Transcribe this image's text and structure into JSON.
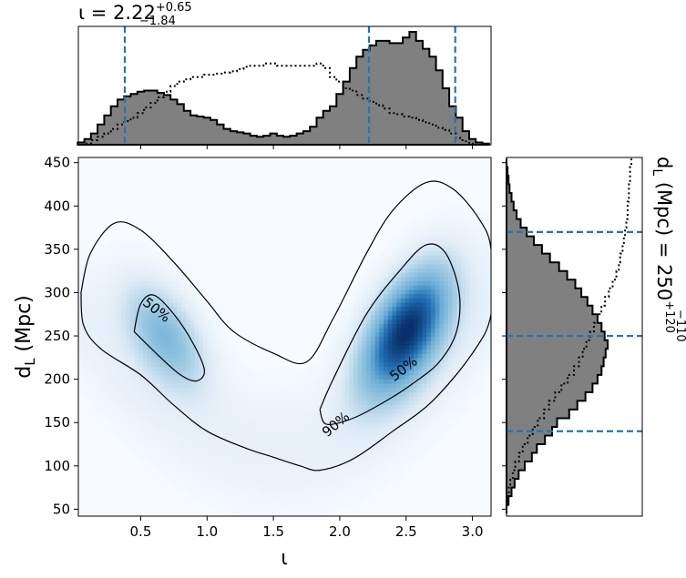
{
  "chart_data": {
    "type": "heatmap",
    "title": "",
    "xlabel": "ι",
    "ylabel": "d_L (Mpc)",
    "xlim": [
      0.03,
      3.14
    ],
    "ylim": [
      42,
      456
    ],
    "x_ticks": [
      "0.5",
      "1.0",
      "1.5",
      "2.0",
      "2.5",
      "3.0"
    ],
    "x_tick_values": [
      0.5,
      1.0,
      1.5,
      2.0,
      2.5,
      3.0
    ],
    "y_ticks": [
      "50",
      "100",
      "150",
      "200",
      "250",
      "300",
      "350",
      "400",
      "450"
    ],
    "y_tick_values": [
      50,
      100,
      150,
      200,
      250,
      300,
      350,
      400,
      450
    ],
    "colormap": "Blues",
    "density_modes": [
      {
        "x": 2.5,
        "y": 255,
        "sx": 0.22,
        "sy": 48,
        "rho": 0.55,
        "weight": 1.0
      },
      {
        "x": 0.68,
        "y": 250,
        "sx": 0.2,
        "sy": 40,
        "rho": -0.5,
        "weight": 0.4
      }
    ],
    "contours": [
      {
        "label": "90%",
        "paths": [
          [
            [
              0.05,
              300
            ],
            [
              0.12,
              345
            ],
            [
              0.3,
              380
            ],
            [
              0.5,
              372
            ],
            [
              0.75,
              335
            ],
            [
              1.0,
              290
            ],
            [
              1.2,
              255
            ],
            [
              1.5,
              230
            ],
            [
              1.75,
              220
            ],
            [
              1.95,
              270
            ],
            [
              2.2,
              345
            ],
            [
              2.4,
              395
            ],
            [
              2.65,
              427
            ],
            [
              2.85,
              420
            ],
            [
              3.05,
              385
            ],
            [
              3.14,
              350
            ],
            [
              3.14,
              275
            ],
            [
              3.0,
              230
            ],
            [
              2.7,
              175
            ],
            [
              2.4,
              140
            ],
            [
              2.1,
              108
            ],
            [
              1.85,
              95
            ],
            [
              1.7,
              100
            ],
            [
              1.5,
              110
            ],
            [
              1.3,
              120
            ],
            [
              1.0,
              140
            ],
            [
              0.75,
              170
            ],
            [
              0.5,
              205
            ],
            [
              0.2,
              235
            ],
            [
              0.07,
              262
            ],
            [
              0.05,
              300
            ]
          ]
        ]
      },
      {
        "label": "50%",
        "paths": [
          [
            [
              0.45,
              255
            ],
            [
              0.5,
              287
            ],
            [
              0.6,
              297
            ],
            [
              0.75,
              275
            ],
            [
              0.9,
              240
            ],
            [
              0.98,
              210
            ],
            [
              0.92,
              198
            ],
            [
              0.8,
              205
            ],
            [
              0.65,
              225
            ],
            [
              0.45,
              255
            ]
          ],
          [
            [
              1.85,
              165
            ],
            [
              1.95,
              200
            ],
            [
              2.2,
              275
            ],
            [
              2.45,
              325
            ],
            [
              2.65,
              355
            ],
            [
              2.8,
              345
            ],
            [
              2.9,
              300
            ],
            [
              2.88,
              255
            ],
            [
              2.75,
              220
            ],
            [
              2.55,
              195
            ],
            [
              2.35,
              175
            ],
            [
              2.1,
              155
            ],
            [
              1.9,
              148
            ],
            [
              1.85,
              165
            ]
          ]
        ]
      }
    ],
    "top_marginal": {
      "title": "ι = 2.22",
      "title_sup": "+0.65",
      "title_sub": "−1.84",
      "bins_x": [
        0.05,
        0.1,
        0.15,
        0.2,
        0.25,
        0.3,
        0.35,
        0.4,
        0.45,
        0.5,
        0.55,
        0.6,
        0.65,
        0.7,
        0.75,
        0.8,
        0.85,
        0.9,
        0.95,
        1.0,
        1.05,
        1.1,
        1.15,
        1.2,
        1.25,
        1.3,
        1.35,
        1.4,
        1.45,
        1.5,
        1.55,
        1.6,
        1.65,
        1.7,
        1.75,
        1.8,
        1.85,
        1.9,
        1.95,
        2.0,
        2.05,
        2.1,
        2.15,
        2.2,
        2.25,
        2.3,
        2.35,
        2.4,
        2.45,
        2.5,
        2.55,
        2.6,
        2.65,
        2.7,
        2.75,
        2.8,
        2.85,
        2.9,
        2.95,
        3.0,
        3.05,
        3.1
      ],
      "posterior": [
        0.02,
        0.05,
        0.1,
        0.18,
        0.26,
        0.34,
        0.4,
        0.43,
        0.45,
        0.47,
        0.48,
        0.48,
        0.46,
        0.44,
        0.4,
        0.36,
        0.3,
        0.26,
        0.25,
        0.24,
        0.22,
        0.18,
        0.14,
        0.12,
        0.11,
        0.1,
        0.08,
        0.07,
        0.08,
        0.1,
        0.08,
        0.07,
        0.08,
        0.1,
        0.12,
        0.16,
        0.24,
        0.3,
        0.34,
        0.45,
        0.56,
        0.68,
        0.78,
        0.84,
        0.88,
        0.92,
        0.92,
        0.9,
        0.9,
        0.95,
        1.0,
        0.92,
        0.85,
        0.78,
        0.66,
        0.5,
        0.34,
        0.24,
        0.12,
        0.05,
        0.02,
        0.01
      ],
      "prior": [
        0.0,
        0.01,
        0.04,
        0.07,
        0.1,
        0.14,
        0.18,
        0.21,
        0.24,
        0.28,
        0.33,
        0.37,
        0.42,
        0.47,
        0.52,
        0.56,
        0.58,
        0.6,
        0.6,
        0.62,
        0.62,
        0.63,
        0.64,
        0.65,
        0.67,
        0.69,
        0.7,
        0.7,
        0.72,
        0.72,
        0.7,
        0.7,
        0.7,
        0.7,
        0.7,
        0.7,
        0.72,
        0.68,
        0.6,
        0.56,
        0.5,
        0.48,
        0.44,
        0.41,
        0.38,
        0.35,
        0.32,
        0.28,
        0.27,
        0.25,
        0.24,
        0.22,
        0.2,
        0.18,
        0.15,
        0.13,
        0.1,
        0.06,
        0.03,
        0.01,
        0.0,
        0.0
      ],
      "quantile_lines": [
        0.38,
        2.22,
        2.87
      ]
    },
    "right_marginal": {
      "title": "d_L (Mpc) = 250",
      "title_sup": "+120",
      "title_sub": "−110",
      "bins_y": [
        50,
        60,
        70,
        80,
        90,
        100,
        110,
        120,
        130,
        140,
        150,
        160,
        170,
        180,
        190,
        200,
        210,
        220,
        230,
        240,
        250,
        260,
        270,
        280,
        290,
        300,
        310,
        320,
        330,
        340,
        350,
        360,
        370,
        380,
        390,
        400,
        410,
        420,
        430,
        440,
        450
      ],
      "posterior": [
        0.0,
        0.02,
        0.05,
        0.08,
        0.12,
        0.18,
        0.25,
        0.3,
        0.38,
        0.45,
        0.5,
        0.62,
        0.7,
        0.78,
        0.85,
        0.9,
        0.94,
        0.96,
        0.98,
        1.0,
        0.97,
        0.94,
        0.9,
        0.85,
        0.8,
        0.74,
        0.68,
        0.6,
        0.52,
        0.43,
        0.35,
        0.27,
        0.2,
        0.14,
        0.1,
        0.07,
        0.05,
        0.03,
        0.02,
        0.01,
        0.0
      ],
      "prior": [
        0.0,
        0.01,
        0.02,
        0.03,
        0.05,
        0.07,
        0.1,
        0.13,
        0.17,
        0.21,
        0.25,
        0.3,
        0.34,
        0.39,
        0.44,
        0.49,
        0.54,
        0.58,
        0.61,
        0.64,
        0.67,
        0.7,
        0.73,
        0.76,
        0.79,
        0.82,
        0.85,
        0.88,
        0.9,
        0.91,
        0.93,
        0.94,
        0.95,
        0.96,
        0.97,
        0.97,
        0.98,
        0.98,
        0.99,
        0.99,
        1.0
      ],
      "quantile_lines": [
        140,
        250,
        370
      ]
    },
    "colors": {
      "histogram_fill": "#808080",
      "quantile_line": "#1f77b4",
      "contour": "#000000",
      "density_dark": "#08306b",
      "density_light": "#f7fbff"
    }
  }
}
